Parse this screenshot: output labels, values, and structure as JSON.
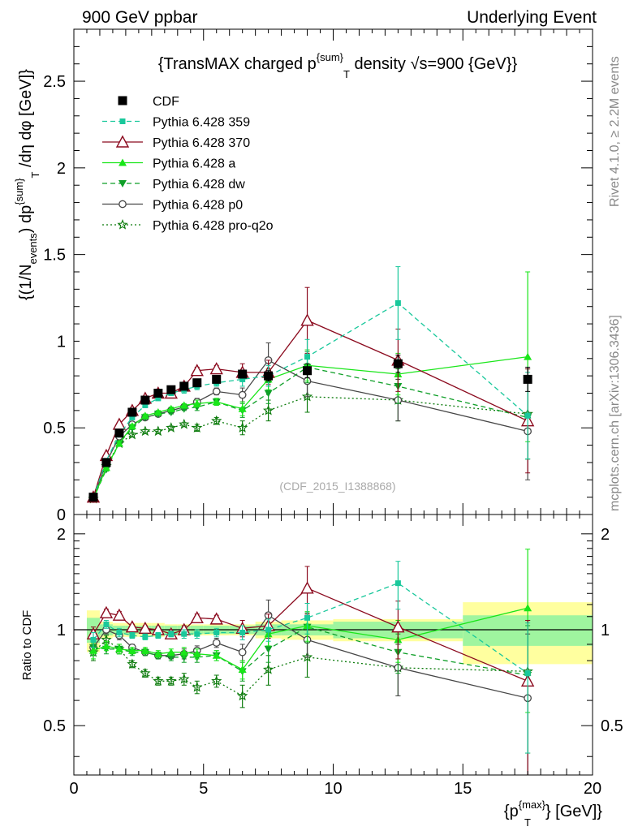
{
  "header": {
    "left": "900 GeV ppbar",
    "right": "Underlying Event"
  },
  "side_labels": {
    "rivet": "Rivet 4.1.0, ≥ 2.2M events",
    "mcplots": "mcplots.cern.ch [arXiv:1306.3436]"
  },
  "watermark": "(CDF_2015_I1388868)",
  "colors": {
    "CDF": "#000000",
    "p359": "#19c89b",
    "p370": "#8b0a1e",
    "pa": "#19e619",
    "pdw": "#0f9f28",
    "p0": "#464646",
    "pq2o": "#0a7a0a",
    "band_yellow": "#ffff9f",
    "band_green": "#9ff59f"
  },
  "chart_data": [
    {
      "type": "line",
      "id": "main",
      "title": "{TransMAX charged p^{sum}_T density √s=900 {GeV}}",
      "title_parts": {
        "a": "{TransMAX charged p",
        "sup": "{sum}",
        "sub": "T",
        "b": " density ",
        "sqrt": "√",
        "c": "s=900 {GeV}}"
      },
      "ylabel_parts": {
        "a": "{(1/N",
        "sub1": "events",
        "b": ") dp",
        "sup2": "{sum}",
        "sub2": "T",
        "c": " /dη  dφ [GeV]}"
      },
      "xlim": [
        0,
        20
      ],
      "ylim": [
        0,
        2.8
      ],
      "yticks": [
        0,
        0.5,
        1,
        1.5,
        2,
        2.5
      ],
      "ytick_labels": [
        "0",
        "0.5",
        "1",
        "1.5",
        "2",
        "2.5"
      ],
      "x": [
        0.75,
        1.25,
        1.75,
        2.25,
        2.75,
        3.25,
        3.75,
        4.25,
        4.75,
        5.5,
        6.5,
        7.5,
        9.0,
        12.5,
        17.5
      ],
      "series": [
        {
          "name": "CDF",
          "key": "CDF",
          "style": "data",
          "values": [
            0.1,
            0.3,
            0.47,
            0.59,
            0.66,
            0.7,
            0.72,
            0.74,
            0.76,
            0.78,
            0.81,
            0.8,
            0.83,
            0.87,
            0.78
          ],
          "errors": [
            0.01,
            0.01,
            0.01,
            0.02,
            0.02,
            0.02,
            0.02,
            0.02,
            0.02,
            0.02,
            0.02,
            0.03,
            0.04,
            0.05,
            0.07
          ]
        },
        {
          "name": "Pythia 6.428 359",
          "key": "p359",
          "style": "dashed",
          "marker": "square",
          "values": [
            0.1,
            0.31,
            0.46,
            0.56,
            0.63,
            0.67,
            0.7,
            0.72,
            0.74,
            0.76,
            0.78,
            0.8,
            0.91,
            1.22,
            0.57
          ],
          "errors": [
            0.01,
            0.01,
            0.01,
            0.01,
            0.01,
            0.01,
            0.01,
            0.02,
            0.02,
            0.02,
            0.04,
            0.06,
            0.1,
            0.21,
            0.25
          ]
        },
        {
          "name": "Pythia 6.428 370",
          "key": "p370",
          "style": "solid",
          "marker": "triangle-open",
          "values": [
            0.1,
            0.34,
            0.52,
            0.6,
            0.67,
            0.7,
            0.7,
            0.74,
            0.83,
            0.84,
            0.82,
            0.82,
            1.12,
            0.89,
            0.54
          ],
          "errors": [
            0.01,
            0.01,
            0.01,
            0.01,
            0.01,
            0.01,
            0.01,
            0.02,
            0.02,
            0.02,
            0.05,
            0.07,
            0.19,
            0.18,
            0.3
          ]
        },
        {
          "name": "Pythia 6.428 a",
          "key": "pa",
          "style": "solid",
          "marker": "triangle",
          "values": [
            0.09,
            0.27,
            0.41,
            0.51,
            0.57,
            0.59,
            0.61,
            0.63,
            0.64,
            0.65,
            0.61,
            0.78,
            0.86,
            0.81,
            0.91
          ],
          "errors": [
            0.01,
            0.01,
            0.01,
            0.01,
            0.01,
            0.01,
            0.01,
            0.01,
            0.02,
            0.02,
            0.04,
            0.06,
            0.09,
            0.12,
            0.49
          ]
        },
        {
          "name": "Pythia 6.428 dw",
          "key": "pdw",
          "style": "dashed",
          "marker": "triangle-down",
          "values": [
            0.09,
            0.26,
            0.41,
            0.5,
            0.56,
            0.58,
            0.59,
            0.61,
            0.62,
            0.65,
            0.6,
            0.7,
            0.85,
            0.74,
            0.56
          ],
          "errors": [
            0.01,
            0.01,
            0.01,
            0.01,
            0.01,
            0.01,
            0.01,
            0.01,
            0.02,
            0.02,
            0.04,
            0.06,
            0.09,
            0.1,
            0.24
          ]
        },
        {
          "name": "Pythia 6.428 p0",
          "key": "p0",
          "style": "solid",
          "marker": "circle-open",
          "values": [
            0.09,
            0.3,
            0.45,
            0.52,
            0.56,
            0.58,
            0.6,
            0.62,
            0.65,
            0.71,
            0.69,
            0.89,
            0.77,
            0.66,
            0.48
          ],
          "errors": [
            0.01,
            0.01,
            0.01,
            0.01,
            0.01,
            0.01,
            0.01,
            0.01,
            0.02,
            0.02,
            0.04,
            0.1,
            0.09,
            0.12,
            0.28
          ]
        },
        {
          "name": "Pythia 6.428 pro-q2o",
          "key": "pq2o",
          "style": "dotted",
          "marker": "star",
          "values": [
            0.09,
            0.28,
            0.41,
            0.46,
            0.48,
            0.48,
            0.5,
            0.52,
            0.5,
            0.54,
            0.5,
            0.6,
            0.68,
            0.66,
            0.58
          ],
          "errors": [
            0.01,
            0.01,
            0.01,
            0.01,
            0.01,
            0.01,
            0.01,
            0.01,
            0.02,
            0.02,
            0.04,
            0.06,
            0.09,
            0.12,
            0.26
          ]
        }
      ]
    },
    {
      "type": "line",
      "id": "ratio",
      "ylabel": "Ratio to CDF",
      "xlabel_parts": {
        "a": "{p",
        "sup": "{max}",
        "sub": "T",
        "b": "} [GeV]}"
      },
      "xlim": [
        0,
        20
      ],
      "ylim": [
        0.35,
        2.3
      ],
      "yticks": [
        0.5,
        1,
        2
      ],
      "ytick_labels": [
        "0.5",
        "1",
        "2"
      ],
      "xticks": [
        0,
        5,
        10,
        15,
        20
      ],
      "xtick_labels": [
        "0",
        "5",
        "10",
        "15",
        "20"
      ],
      "bins": [
        [
          0.5,
          1.0
        ],
        [
          1.0,
          1.5
        ],
        [
          1.5,
          2.0
        ],
        [
          2.0,
          2.5
        ],
        [
          2.5,
          3.0
        ],
        [
          3.0,
          3.5
        ],
        [
          3.5,
          4.0
        ],
        [
          4.0,
          4.5
        ],
        [
          4.5,
          5.0
        ],
        [
          5.0,
          6.0
        ],
        [
          6.0,
          7.0
        ],
        [
          7.0,
          8.0
        ],
        [
          8.0,
          10.0
        ],
        [
          10.0,
          15.0
        ],
        [
          15.0,
          20.0
        ]
      ],
      "band_stat": [
        0.09,
        0.04,
        0.03,
        0.03,
        0.03,
        0.03,
        0.03,
        0.03,
        0.03,
        0.03,
        0.03,
        0.04,
        0.04,
        0.06,
        0.11
      ],
      "band_total": [
        0.15,
        0.06,
        0.05,
        0.05,
        0.05,
        0.05,
        0.04,
        0.04,
        0.04,
        0.04,
        0.04,
        0.06,
        0.07,
        0.08,
        0.22
      ],
      "x": [
        0.75,
        1.25,
        1.75,
        2.25,
        2.75,
        3.25,
        3.75,
        4.25,
        4.75,
        5.5,
        6.5,
        7.5,
        9.0,
        12.5,
        17.5
      ],
      "series": [
        {
          "name": "Pythia 6.428 359",
          "key": "p359",
          "style": "dashed",
          "marker": "square",
          "values": [
            0.93,
            1.04,
            0.98,
            0.96,
            0.95,
            0.96,
            0.97,
            0.97,
            0.97,
            0.98,
            0.98,
            1.0,
            1.09,
            1.4,
            0.73
          ],
          "errors": [
            0.05,
            0.03,
            0.03,
            0.02,
            0.02,
            0.02,
            0.02,
            0.03,
            0.03,
            0.03,
            0.05,
            0.08,
            0.12,
            0.24,
            0.32
          ]
        },
        {
          "name": "Pythia 6.428 370",
          "key": "p370",
          "style": "solid",
          "marker": "triangle-open",
          "values": [
            0.97,
            1.13,
            1.11,
            1.02,
            1.01,
            1.0,
            0.97,
            1.0,
            1.09,
            1.08,
            1.01,
            1.03,
            1.35,
            1.02,
            0.69
          ],
          "errors": [
            0.05,
            0.03,
            0.03,
            0.02,
            0.02,
            0.02,
            0.02,
            0.03,
            0.03,
            0.03,
            0.06,
            0.09,
            0.23,
            0.21,
            0.38
          ]
        },
        {
          "name": "Pythia 6.428 a",
          "key": "pa",
          "style": "solid",
          "marker": "triangle",
          "values": [
            0.86,
            0.89,
            0.87,
            0.86,
            0.86,
            0.84,
            0.85,
            0.85,
            0.84,
            0.83,
            0.75,
            0.97,
            1.03,
            0.93,
            1.17
          ],
          "errors": [
            0.05,
            0.03,
            0.03,
            0.02,
            0.02,
            0.02,
            0.02,
            0.03,
            0.03,
            0.03,
            0.05,
            0.08,
            0.11,
            0.14,
            0.62
          ]
        },
        {
          "name": "Pythia 6.428 dw",
          "key": "pdw",
          "style": "dashed",
          "marker": "triangle-down",
          "values": [
            0.88,
            0.87,
            0.87,
            0.85,
            0.85,
            0.83,
            0.82,
            0.82,
            0.82,
            0.83,
            0.74,
            0.87,
            1.02,
            0.85,
            0.72
          ],
          "errors": [
            0.05,
            0.03,
            0.03,
            0.02,
            0.02,
            0.02,
            0.02,
            0.03,
            0.03,
            0.03,
            0.05,
            0.08,
            0.11,
            0.12,
            0.31
          ]
        },
        {
          "name": "Pythia 6.428 p0",
          "key": "p0",
          "style": "solid",
          "marker": "circle-open",
          "values": [
            0.88,
            1.0,
            0.96,
            0.88,
            0.85,
            0.83,
            0.83,
            0.84,
            0.86,
            0.91,
            0.85,
            1.11,
            0.93,
            0.76,
            0.61
          ],
          "errors": [
            0.05,
            0.03,
            0.03,
            0.02,
            0.02,
            0.02,
            0.02,
            0.03,
            0.03,
            0.03,
            0.05,
            0.13,
            0.11,
            0.14,
            0.36
          ]
        },
        {
          "name": "Pythia 6.428 pro-q2o",
          "key": "pq2o",
          "style": "dotted",
          "marker": "star",
          "values": [
            0.85,
            0.93,
            0.87,
            0.78,
            0.73,
            0.69,
            0.69,
            0.7,
            0.66,
            0.69,
            0.62,
            0.75,
            0.82,
            0.76,
            0.74
          ],
          "errors": [
            0.05,
            0.03,
            0.03,
            0.02,
            0.02,
            0.02,
            0.02,
            0.03,
            0.03,
            0.03,
            0.05,
            0.08,
            0.11,
            0.14,
            0.33
          ]
        }
      ]
    }
  ]
}
